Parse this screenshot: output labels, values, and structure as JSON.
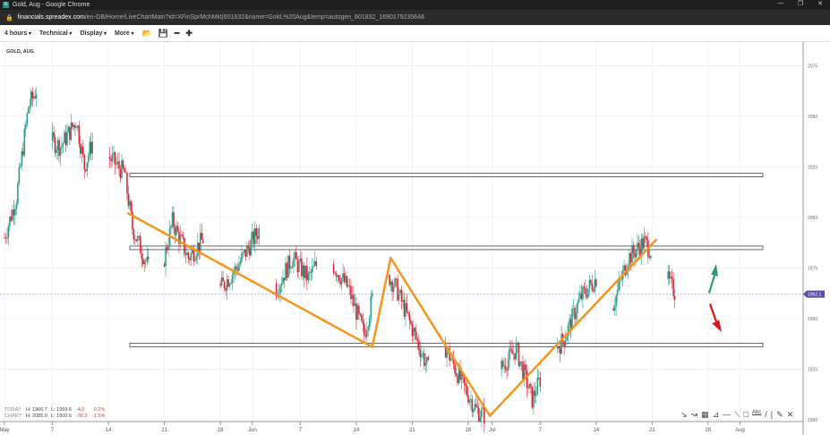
{
  "window": {
    "title": "Gold, Aug - Google Chrome",
    "controls": [
      "—",
      "❐",
      "✕"
    ]
  },
  "address": {
    "host": "financials.spreadex.com",
    "path": "/en-GB/Home/LiveChartMain?id=XFinSprMchMkt|601832&name=Gold,%20Aug&temp=autogen_601832_1690179235648"
  },
  "toolbar": {
    "items": [
      "4 hours",
      "Technical",
      "Display",
      "More"
    ],
    "icons": [
      "folder-icon",
      "save-icon",
      "zoom-out-icon",
      "zoom-in-icon"
    ],
    "icon_glyphs": [
      "📂",
      "💾",
      "━",
      "✚"
    ]
  },
  "instrument": "GOLD, AUG",
  "stats": {
    "today": {
      "label": "TODAY:",
      "high": "H: 1966.7",
      "low": "L: 1959.6",
      "change": "-4.5",
      "pct": "-0.2%"
    },
    "chart": {
      "label": "CHART:",
      "high": "H: 2085.0",
      "low": "L: 1900.6",
      "change": "-30.2",
      "pct": "-1.5%"
    }
  },
  "drawing_tools": [
    "↘",
    "↝",
    "▦",
    "⊿",
    "—",
    "⟍",
    "□",
    "Abc",
    "/",
    "|",
    "✎",
    "✕"
  ],
  "colors": {
    "up": "#2aa08a",
    "down": "#d42a3a",
    "trendline": "#f7941d",
    "price_tag": "#5a4fa8",
    "arrow_up": "#2e9a6e",
    "arrow_down": "#e0101a"
  },
  "chart_data": {
    "type": "candlestick",
    "ylim": [
      1895,
      2085
    ],
    "y_ticks": [
      2075,
      2050,
      2025,
      2000,
      1975,
      1950,
      1925,
      1900
    ],
    "x_ticks": [
      {
        "label": "May",
        "day": 0
      },
      {
        "label": "7",
        "day": 6
      },
      {
        "label": "14",
        "day": 13
      },
      {
        "label": "21",
        "day": 20
      },
      {
        "label": "28",
        "day": 27
      },
      {
        "label": "Jun",
        "day": 31
      },
      {
        "label": "7",
        "day": 37
      },
      {
        "label": "14",
        "day": 44
      },
      {
        "label": "21",
        "day": 51
      },
      {
        "label": "28",
        "day": 58
      },
      {
        "label": "Jul",
        "day": 61
      },
      {
        "label": "7",
        "day": 67
      },
      {
        "label": "14",
        "day": 74
      },
      {
        "label": "21",
        "day": 81
      },
      {
        "label": "28",
        "day": 88
      },
      {
        "label": "Aug",
        "day": 92
      }
    ],
    "last_price": "1962.1",
    "price_path": [
      [
        0,
        1990
      ],
      [
        1.5,
        2010
      ],
      [
        3,
        2055
      ],
      [
        4,
        2063
      ],
      [
        5,
        2040
      ],
      [
        7,
        2035
      ],
      [
        9,
        2048
      ],
      [
        10,
        2025
      ],
      [
        12,
        2050
      ],
      [
        13,
        2030
      ],
      [
        15,
        2022
      ],
      [
        16,
        1995
      ],
      [
        18,
        1975
      ],
      [
        19,
        1962
      ],
      [
        21,
        1998
      ],
      [
        23,
        1980
      ],
      [
        25,
        1990
      ],
      [
        27,
        1965
      ],
      [
        29,
        1975
      ],
      [
        32,
        1995
      ],
      [
        34,
        1965
      ],
      [
        36,
        1980
      ],
      [
        38,
        1970
      ],
      [
        40,
        1983
      ],
      [
        43,
        1965
      ],
      [
        45,
        1942
      ],
      [
        47,
        1978
      ],
      [
        49,
        1965
      ],
      [
        51,
        1945
      ],
      [
        53,
        1925
      ],
      [
        55,
        1937
      ],
      [
        57,
        1920
      ],
      [
        59,
        1905
      ],
      [
        60,
        1902
      ],
      [
        62,
        1925
      ],
      [
        64,
        1935
      ],
      [
        66,
        1910
      ],
      [
        68,
        1930
      ],
      [
        70,
        1940
      ],
      [
        72,
        1960
      ],
      [
        74,
        1970
      ],
      [
        76,
        1955
      ],
      [
        78,
        1980
      ],
      [
        80,
        1988
      ],
      [
        81,
        1983
      ],
      [
        82,
        1975
      ],
      [
        84,
        1962
      ]
    ],
    "zones": [
      2021,
      1985,
      1937
    ],
    "trendlines": [
      [
        [
          15.5,
          2002
        ],
        [
          46,
          1936
        ]
      ],
      [
        [
          46,
          1936
        ],
        [
          48.3,
          1980
        ]
      ],
      [
        [
          48.3,
          1980
        ],
        [
          60.7,
          1902
        ]
      ],
      [
        [
          60.7,
          1902
        ],
        [
          81.5,
          1989
        ]
      ]
    ]
  }
}
